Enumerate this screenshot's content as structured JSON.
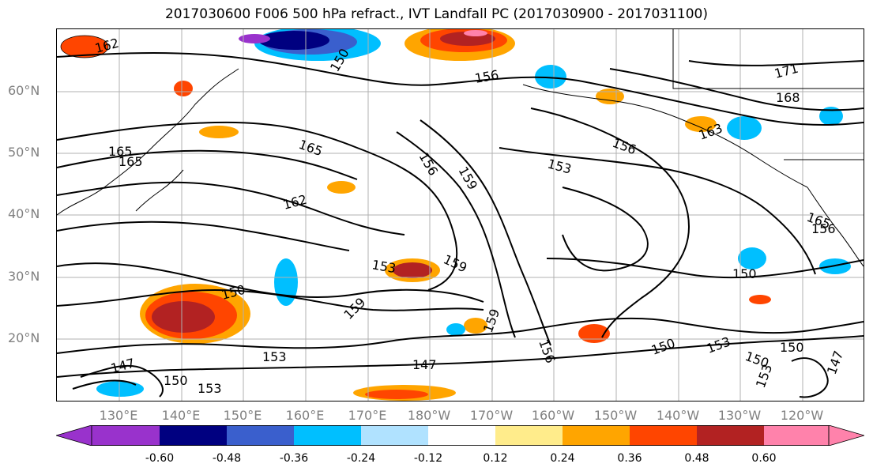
{
  "title": "2017030600 F006 500 hPa refract., IVT Landfall PC (2017030900 - 2017031100)",
  "lat_labels": [
    "60°N",
    "50°N",
    "40°N",
    "30°N",
    "20°N"
  ],
  "lon_labels": [
    "130°E",
    "140°E",
    "150°E",
    "160°E",
    "170°E",
    "180°W",
    "170°W",
    "160°W",
    "150°W",
    "140°W",
    "130°W",
    "120°W"
  ],
  "contour_labels": [
    "162",
    "150",
    "156",
    "165",
    "165",
    "165",
    "156",
    "159",
    "153",
    "162",
    "156",
    "163",
    "171",
    "168",
    "153",
    "159",
    "150",
    "159",
    "159",
    "156",
    "150",
    "153",
    "150",
    "150",
    "147",
    "153",
    "147",
    "150",
    "153",
    "150",
    "147",
    "165",
    "156",
    "153"
  ],
  "colorbar": {
    "colors": [
      "#9932cc",
      "#000080",
      "#3a5fcd",
      "#00bfff",
      "#b0e2ff",
      "#ffffff",
      "#ffec8b",
      "#ffa500",
      "#ff4500",
      "#b22222",
      "#ff82ab"
    ],
    "tick_labels": [
      "-0.60",
      "-0.48",
      "-0.36",
      "-0.24",
      "-0.12",
      "0.12",
      "0.24",
      "0.36",
      "0.48",
      "0.60"
    ]
  },
  "colors": {
    "gridline": "#b0b0b0",
    "contour": "#000000",
    "coastline": "#000000",
    "axis_label": "#808080"
  }
}
